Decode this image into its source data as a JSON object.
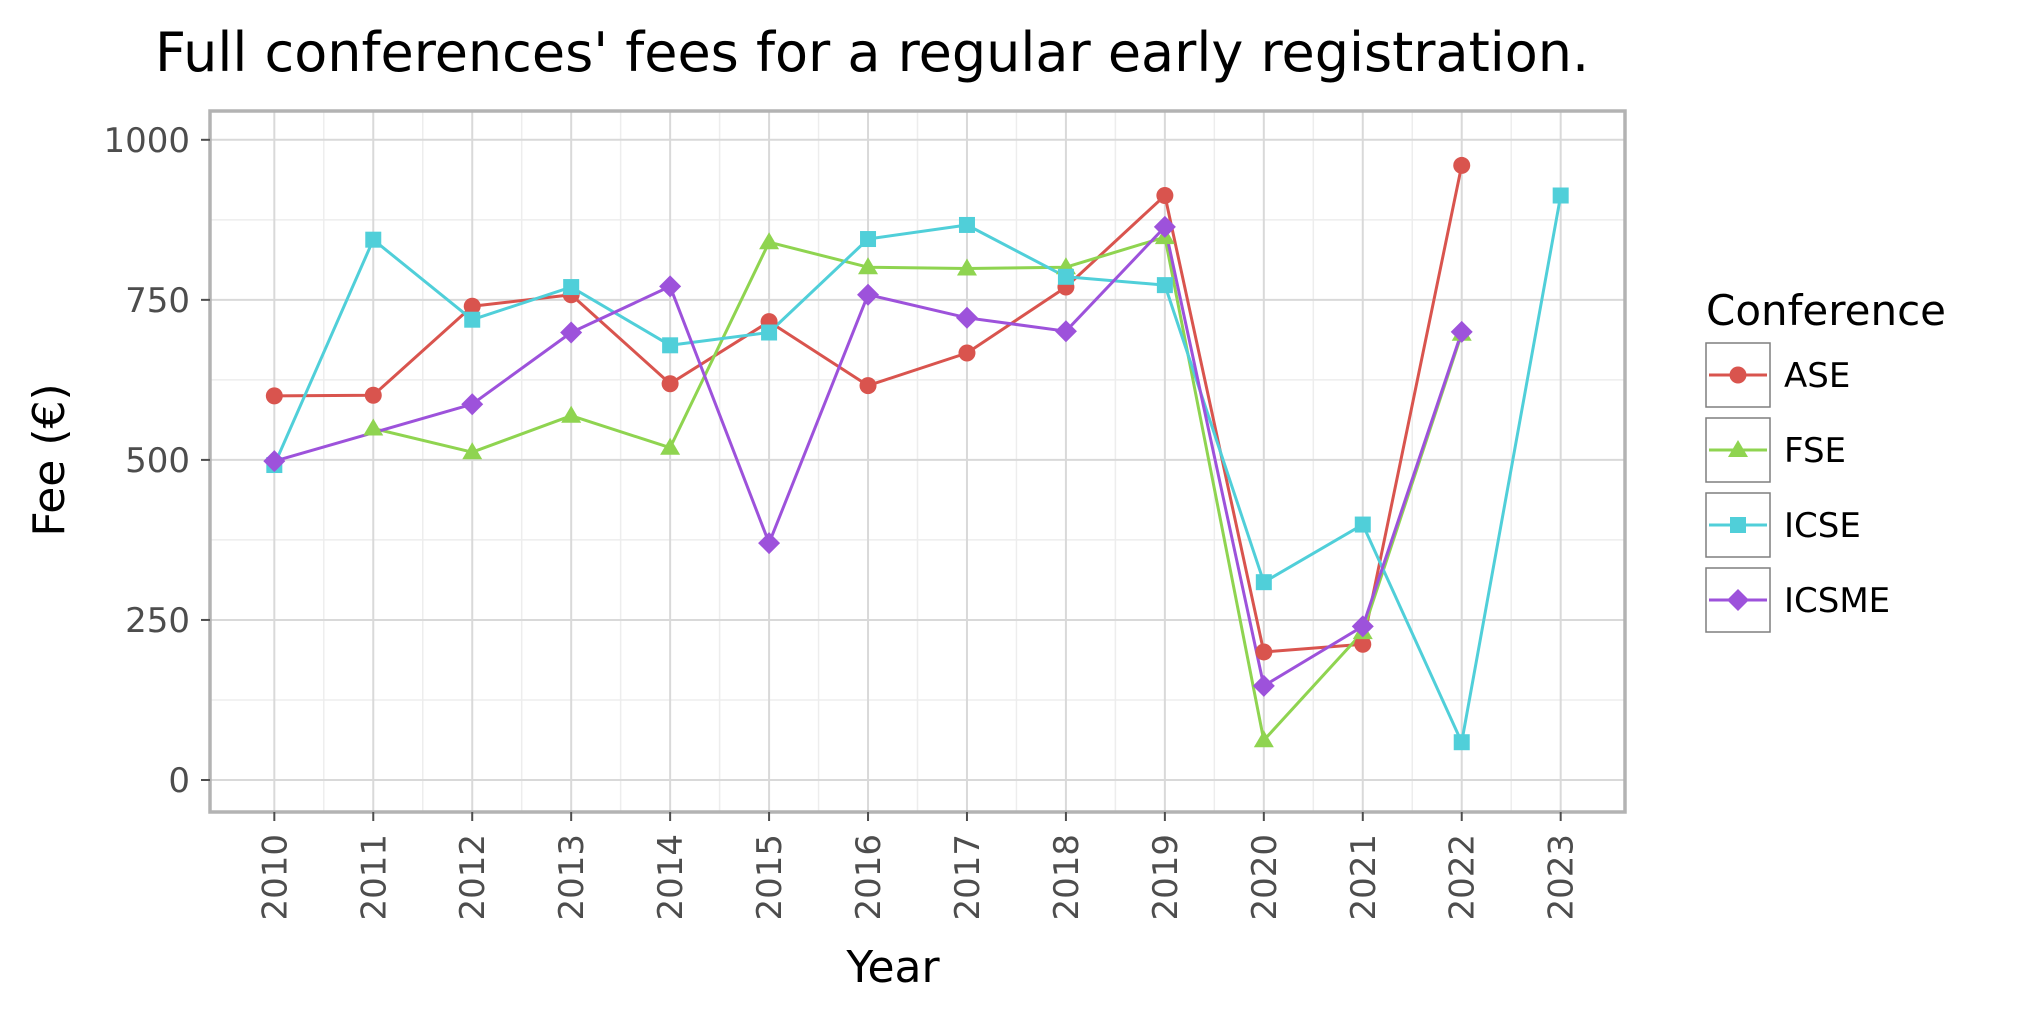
{
  "chart_data": {
    "type": "line",
    "title": "Full conferences' fees for a regular early registration.",
    "xlabel": "Year",
    "ylabel": "Fee (€)",
    "x": [
      2010,
      2011,
      2012,
      2013,
      2014,
      2015,
      2016,
      2017,
      2018,
      2019,
      2020,
      2021,
      2022,
      2023
    ],
    "xlim": [
      2009.35,
      2023.65
    ],
    "ylim": [
      -50,
      1045
    ],
    "yticks": [
      0,
      250,
      500,
      750,
      1000
    ],
    "grid": true,
    "legend": {
      "title": "Conference",
      "placement": "right"
    },
    "series": [
      {
        "name": "ASE",
        "color": "#d9544e",
        "marker": "circle",
        "values": [
          600,
          601,
          740,
          758,
          619,
          716,
          616,
          667,
          770,
          913,
          200,
          212,
          960,
          null
        ]
      },
      {
        "name": "FSE",
        "color": "#8fd450",
        "marker": "triangle",
        "values": [
          null,
          549,
          512,
          569,
          519,
          840,
          801,
          799,
          801,
          848,
          62,
          231,
          697,
          null
        ]
      },
      {
        "name": "ICSE",
        "color": "#50cfd9",
        "marker": "square",
        "values": [
          492,
          844,
          719,
          770,
          679,
          699,
          845,
          867,
          786,
          773,
          309,
          399,
          59,
          913
        ]
      },
      {
        "name": "ICSME",
        "color": "#9d52db",
        "marker": "diamond",
        "values": [
          498,
          null,
          587,
          699,
          771,
          370,
          758,
          722,
          701,
          864,
          147,
          240,
          700,
          null
        ]
      }
    ]
  }
}
